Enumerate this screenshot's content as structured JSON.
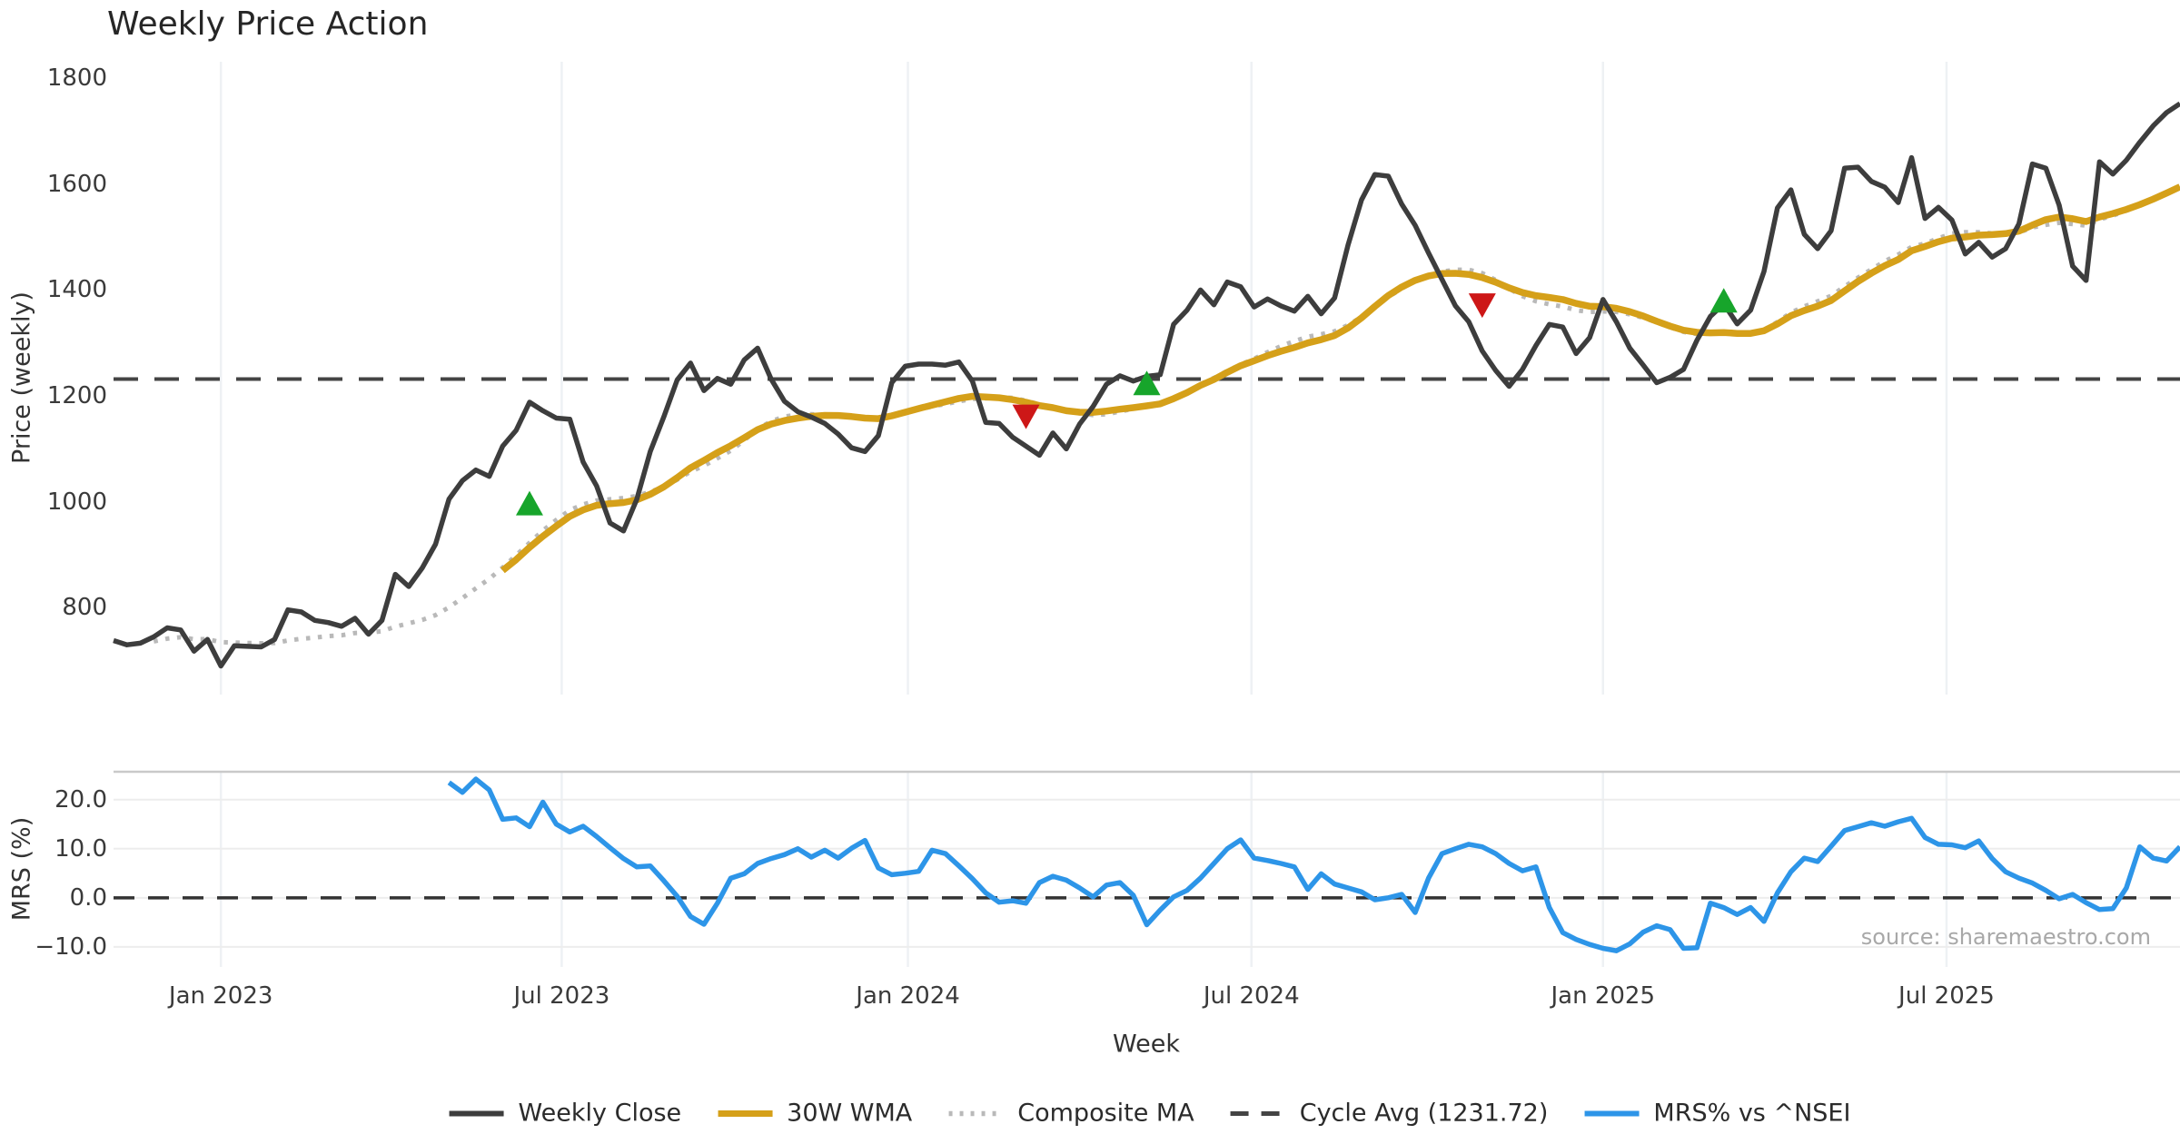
{
  "title": "Weekly Price Action",
  "source": "source: sharemaestro.com",
  "xlabel": "Week",
  "colors": {
    "weekly_close": "#3d3d3d",
    "wma": "#d5a019",
    "composite": "#b9b9b9",
    "cycle_avg": "#444444",
    "mrs": "#2d95e8",
    "buy_marker": "#17a52b",
    "sell_marker": "#cd1717",
    "grid_vertical": "#eef1f4",
    "grid_horizontal": "#ededed",
    "panel_spine": "#c9c9c9",
    "zero_dash": "#333333",
    "tick_text": "#3a3a3a",
    "title_text": "#262626",
    "source_text": "#a8a8a8"
  },
  "legend": {
    "items": [
      {
        "label": "Weekly Close",
        "style": "solid",
        "color": "#3d3d3d"
      },
      {
        "label": "30W WMA",
        "style": "solid",
        "color": "#d5a019"
      },
      {
        "label": "Composite MA",
        "style": "dotted",
        "color": "#b9b9b9"
      },
      {
        "label": "Cycle Avg (1231.72)",
        "style": "dashed",
        "color": "#444444"
      },
      {
        "label": "MRS% vs ^NSEI",
        "style": "solid",
        "color": "#2d95e8"
      }
    ]
  },
  "chart_data": [
    {
      "type": "line",
      "panel": "price",
      "title": "Weekly Price Action",
      "ylabel": "Price (weekly)",
      "ylim": [
        636,
        1831
      ],
      "yticks": [
        {
          "v": 1800,
          "label": "1800"
        },
        {
          "v": 1600,
          "label": "1600"
        },
        {
          "v": 1400,
          "label": "1400"
        },
        {
          "v": 1200,
          "label": "1200"
        },
        {
          "v": 1000,
          "label": "1000"
        },
        {
          "v": 800,
          "label": "800"
        }
      ],
      "grid": "vertical-only",
      "cycle_avg": 1231.72,
      "series": [
        {
          "name": "Weekly Close",
          "type": "weekly_values",
          "values": [
            738,
            730,
            733,
            745,
            762,
            758,
            718,
            740,
            690,
            728,
            727,
            726,
            740,
            796,
            792,
            776,
            772,
            765,
            780,
            750,
            776,
            863,
            840,
            875,
            920,
            1005,
            1040,
            1060,
            1048,
            1105,
            1135,
            1188,
            1172,
            1158,
            1156,
            1075,
            1030,
            960,
            945,
            1005,
            1095,
            1160,
            1230,
            1262,
            1210,
            1233,
            1222,
            1268,
            1290,
            1232,
            1190,
            1170,
            1160,
            1148,
            1128,
            1102,
            1095,
            1125,
            1225,
            1256,
            1260,
            1260,
            1258,
            1264,
            1228,
            1150,
            1148,
            1122,
            1105,
            1088,
            1130,
            1100,
            1147,
            1180,
            1222,
            1238,
            1228,
            1237,
            1240,
            1335,
            1362,
            1400,
            1372,
            1415,
            1406,
            1368,
            1383,
            1370,
            1360,
            1388,
            1355,
            1385,
            1485,
            1570,
            1618,
            1615,
            1562,
            1522,
            1470,
            1420,
            1370,
            1340,
            1285,
            1248,
            1218,
            1250,
            1295,
            1335,
            1330,
            1280,
            1310,
            1382,
            1340,
            1290,
            1258,
            1225,
            1235,
            1250,
            1305,
            1350,
            1374,
            1336,
            1362,
            1435,
            1555,
            1589,
            1505,
            1478,
            1512,
            1630,
            1632,
            1605,
            1594,
            1565,
            1650,
            1535,
            1556,
            1532,
            1468,
            1490,
            1462,
            1478,
            1525,
            1638,
            1630,
            1560,
            1445,
            1418,
            1642,
            1619,
            1645,
            1679,
            1710,
            1735,
            1752
          ]
        },
        {
          "name": "30W WMA",
          "type": "derived",
          "method": "linear-weighted moving average, window 30, of Weekly Close"
        },
        {
          "name": "Composite MA",
          "type": "derived",
          "method": "mean of trailing SMA10, SMA20, SMA30 of Weekly Close"
        },
        {
          "name": "Cycle Avg (1231.72)",
          "type": "constant",
          "value": 1231.72
        }
      ],
      "signal_markers": [
        {
          "type": "buy",
          "week": 31,
          "price": 995
        },
        {
          "type": "sell",
          "week": 68,
          "price": 1163
        },
        {
          "type": "buy",
          "week": 77,
          "price": 1222
        },
        {
          "type": "sell",
          "week": 102,
          "price": 1373
        },
        {
          "type": "buy",
          "week": 120,
          "price": 1378
        }
      ]
    },
    {
      "type": "line",
      "panel": "mrs",
      "ylabel": "MRS (%)",
      "xlabel": "Week",
      "ylim": [
        -14.1,
        25.7
      ],
      "yticks": [
        {
          "v": 20,
          "label": "20.0"
        },
        {
          "v": 10,
          "label": "10.0"
        },
        {
          "v": 0,
          "label": "0.0"
        },
        {
          "v": -10,
          "label": "−10.0"
        }
      ],
      "grid": "both",
      "zero_line_dashed": true,
      "series": [
        {
          "name": "MRS% vs ^NSEI",
          "type": "weekly_values",
          "start_week": 25,
          "values": [
            23.5,
            21.5,
            24.2,
            22.0,
            16.0,
            16.3,
            14.5,
            19.5,
            15.0,
            13.4,
            14.6,
            12.5,
            10.2,
            8.0,
            6.3,
            6.5,
            3.5,
            0.3,
            -3.8,
            -5.4,
            -1.1,
            4.0,
            4.9,
            7.0,
            8.0,
            8.8,
            10.0,
            8.3,
            9.7,
            8.1,
            10.1,
            11.7,
            6.1,
            4.7,
            5.0,
            5.4,
            9.7,
            9.0,
            6.5,
            3.9,
            1.0,
            -0.9,
            -0.6,
            -1.1,
            3.1,
            4.4,
            3.6,
            2.0,
            0.2,
            2.6,
            3.1,
            0.5,
            -5.5,
            -2.5,
            0.2,
            1.5,
            4.0,
            7.0,
            10.0,
            11.8,
            8.1,
            7.6,
            7.0,
            6.3,
            1.7,
            4.9,
            2.8,
            2.0,
            1.2,
            -0.4,
            0.0,
            0.7,
            -3.0,
            4.0,
            9.0,
            10.0,
            10.9,
            10.4,
            9.0,
            7.0,
            5.5,
            6.3,
            -2.0,
            -7.1,
            -8.5,
            -9.5,
            -10.3,
            -10.8,
            -9.4,
            -7.0,
            -5.7,
            -6.5,
            -10.3,
            -10.2,
            -1.1,
            -2.0,
            -3.4,
            -2.0,
            -4.8,
            1.0,
            5.3,
            8.1,
            7.4,
            10.5,
            13.7,
            14.5,
            15.3,
            14.6,
            15.5,
            16.2,
            12.3,
            10.9,
            10.8,
            10.2,
            11.6,
            8.0,
            5.3,
            4.0,
            3.0,
            1.5,
            -0.2,
            0.7,
            -1.0,
            -2.4,
            -2.2,
            2.0,
            10.4,
            8.1,
            7.5,
            10.4
          ]
        }
      ]
    }
  ],
  "x_axis": {
    "n_weeks": 155,
    "ticks": [
      {
        "label": "Jan 2023",
        "week": 8.0
      },
      {
        "label": "Jul 2023",
        "week": 33.4
      },
      {
        "label": "Jan 2024",
        "week": 59.2
      },
      {
        "label": "Jul 2024",
        "week": 84.8
      },
      {
        "label": "Jan 2025",
        "week": 111.0
      },
      {
        "label": "Jul 2025",
        "week": 136.6
      }
    ]
  }
}
